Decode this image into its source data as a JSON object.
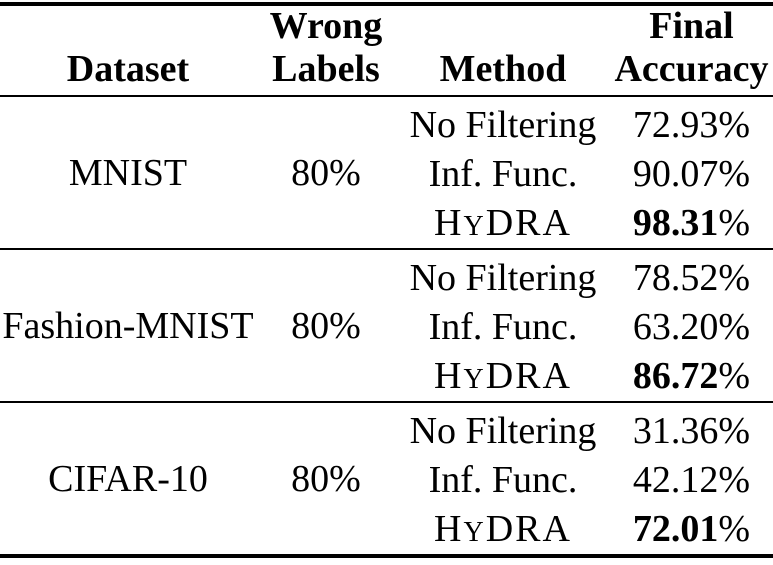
{
  "table": {
    "header": {
      "dataset": "Dataset",
      "wrong_labels": [
        "Wrong",
        "Labels"
      ],
      "method": "Method",
      "final_accuracy": [
        "Final",
        "Accuracy"
      ]
    },
    "groups": [
      {
        "dataset": "MNIST",
        "wrong_labels": "80%",
        "rows": [
          {
            "method": "No Filtering",
            "accuracy_value": "72.93",
            "accuracy_unit": "%",
            "highlight": false
          },
          {
            "method": "Inf. Func.",
            "accuracy_value": "90.07",
            "accuracy_unit": "%",
            "highlight": false
          },
          {
            "method_parts": {
              "pre": "H",
              "smallcap": "Y",
              "post": "DRA"
            },
            "accuracy_value": "98.31",
            "accuracy_unit": "%",
            "highlight": true
          }
        ]
      },
      {
        "dataset": "Fashion-MNIST",
        "wrong_labels": "80%",
        "rows": [
          {
            "method": "No Filtering",
            "accuracy_value": "78.52",
            "accuracy_unit": "%",
            "highlight": false
          },
          {
            "method": "Inf. Func.",
            "accuracy_value": "63.20",
            "accuracy_unit": "%",
            "highlight": false
          },
          {
            "method_parts": {
              "pre": "H",
              "smallcap": "Y",
              "post": "DRA"
            },
            "accuracy_value": "86.72",
            "accuracy_unit": "%",
            "highlight": true
          }
        ]
      },
      {
        "dataset": "CIFAR-10",
        "wrong_labels": "80%",
        "rows": [
          {
            "method": "No Filtering",
            "accuracy_value": "31.36",
            "accuracy_unit": "%",
            "highlight": false
          },
          {
            "method": "Inf. Func.",
            "accuracy_value": "42.12",
            "accuracy_unit": "%",
            "highlight": false
          },
          {
            "method_parts": {
              "pre": "H",
              "smallcap": "Y",
              "post": "DRA"
            },
            "accuracy_value": "72.01",
            "accuracy_unit": "%",
            "highlight": true
          }
        ]
      }
    ]
  },
  "colors": {
    "text": "#000000",
    "background": "#ffffff",
    "rule": "#000000"
  }
}
